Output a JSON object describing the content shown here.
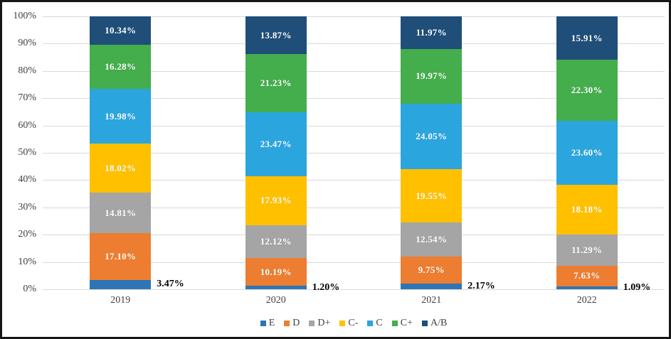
{
  "chart_data": {
    "type": "bar",
    "variant": "100-percent-stacked-column",
    "title": "",
    "xlabel": "",
    "ylabel": "",
    "grid": true,
    "legend_position": "bottom",
    "categories": [
      "2019",
      "2020",
      "2021",
      "2022"
    ],
    "y_axis": {
      "min": 0,
      "max": 100,
      "tick_step": 10,
      "ticks": [
        "0%",
        "10%",
        "20%",
        "30%",
        "40%",
        "50%",
        "60%",
        "70%",
        "80%",
        "90%",
        "100%"
      ]
    },
    "series": [
      {
        "name": "E",
        "color": "#2E75B6",
        "values": [
          3.47,
          1.2,
          2.17,
          1.09
        ],
        "labels": [
          "3.47%",
          "1.20%",
          "2.17%",
          "1.09%"
        ],
        "label_position": "outside"
      },
      {
        "name": "D",
        "color": "#ED7D31",
        "values": [
          17.1,
          10.19,
          9.75,
          7.63
        ],
        "labels": [
          "17.10%",
          "10.19%",
          "9.75%",
          "7.63%"
        ],
        "label_position": "inside"
      },
      {
        "name": "D+",
        "color": "#A5A5A5",
        "values": [
          14.81,
          12.12,
          12.54,
          11.29
        ],
        "labels": [
          "14.81%",
          "12.12%",
          "12.54%",
          "11.29%"
        ],
        "label_position": "inside"
      },
      {
        "name": "C-",
        "color": "#FFC000",
        "values": [
          18.02,
          17.93,
          19.55,
          18.18
        ],
        "labels": [
          "18.02%",
          "17.93%",
          "19.55%",
          "18.18%"
        ],
        "label_position": "inside"
      },
      {
        "name": "C",
        "color": "#2BA5DE",
        "values": [
          19.98,
          23.47,
          24.05,
          23.6
        ],
        "labels": [
          "19.98%",
          "23.47%",
          "24.05%",
          "23.60%"
        ],
        "label_position": "inside"
      },
      {
        "name": "C+",
        "color": "#44AD4C",
        "values": [
          16.28,
          21.23,
          19.97,
          22.3
        ],
        "labels": [
          "16.28%",
          "21.23%",
          "19.97%",
          "22.30%"
        ],
        "label_position": "inside"
      },
      {
        "name": "A/B",
        "color": "#1F4E79",
        "values": [
          10.34,
          13.87,
          11.97,
          15.91
        ],
        "labels": [
          "10.34%",
          "13.87%",
          "11.97%",
          "15.91%"
        ],
        "label_position": "inside"
      }
    ],
    "style": {
      "gridline_color": "#D9D9D9",
      "axis_text_color": "#3F3F3F",
      "inside_label_color": "#FFFFFF",
      "outside_label_color": "#000000",
      "frame_border_color": "#161616",
      "background_color": "#FFFFFF"
    }
  }
}
